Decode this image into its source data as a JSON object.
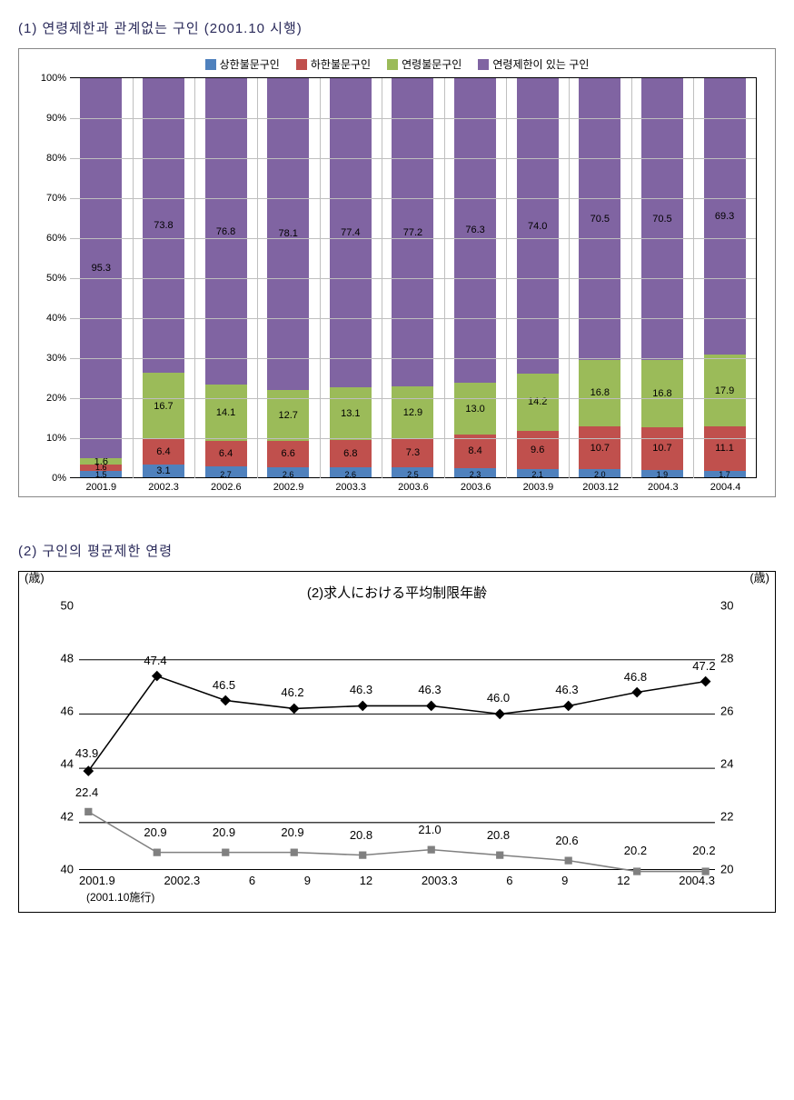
{
  "section1": {
    "title": "(1) 연령제한과 관계없는 구인 (2001.10 시행)",
    "chart": {
      "type": "stacked_bar",
      "ylim": [
        0,
        100
      ],
      "ytick_step": 10,
      "ytick_suffix": "%",
      "background_color": "#ffffff",
      "grid_color": "#bfbfbf",
      "categories": [
        "2001.9",
        "2002.3",
        "2002.6",
        "2002.9",
        "2003.3",
        "2003.6",
        "2003.6",
        "2003.9",
        "2003.12",
        "2004.3",
        "2004.4"
      ],
      "series": [
        {
          "name": "상한불문구인",
          "color": "#4f81bd"
        },
        {
          "name": "하한불문구인",
          "color": "#c0504d"
        },
        {
          "name": "연령불문구인",
          "color": "#9bbb59"
        },
        {
          "name": "연령제한이 있는 구인",
          "color": "#8064a2"
        }
      ],
      "values": [
        [
          1.5,
          1.6,
          1.6,
          95.3
        ],
        [
          3.1,
          6.4,
          16.7,
          73.8
        ],
        [
          2.7,
          6.4,
          14.1,
          76.8
        ],
        [
          2.6,
          6.6,
          12.7,
          78.1
        ],
        [
          2.6,
          6.8,
          13.1,
          77.4
        ],
        [
          2.5,
          7.3,
          12.9,
          77.2
        ],
        [
          2.3,
          8.4,
          13.0,
          76.3
        ],
        [
          2.1,
          9.6,
          14.2,
          74.0
        ],
        [
          2.0,
          10.7,
          16.8,
          70.5
        ],
        [
          1.9,
          10.7,
          16.8,
          70.5
        ],
        [
          1.7,
          11.1,
          17.9,
          69.3
        ]
      ]
    }
  },
  "section2": {
    "title": "(2) 구인의 평균제한 연령",
    "chart": {
      "type": "line",
      "title": "(2)求人における平均制限年齢",
      "left_axis": {
        "unit": "(歳)",
        "min": 40,
        "max": 50,
        "step": 2
      },
      "right_axis": {
        "unit": "(歳)",
        "min": 20,
        "max": 30,
        "step": 2
      },
      "grid_color": "#000000",
      "categories": [
        "2001.9",
        "2002.3",
        "6",
        "9",
        "12",
        "2003.3",
        "6",
        "9",
        "12",
        "2004.3"
      ],
      "subnote": "(2001.10施行)",
      "series_upper": {
        "color": "#000000",
        "marker": "diamond",
        "values": [
          43.9,
          47.4,
          46.5,
          46.2,
          46.3,
          46.3,
          46.0,
          46.3,
          46.8,
          47.2
        ]
      },
      "series_lower": {
        "color": "#808080",
        "marker": "square",
        "values": [
          22.4,
          20.9,
          20.9,
          20.9,
          20.8,
          21.0,
          20.8,
          20.6,
          20.2,
          20.2
        ]
      }
    }
  }
}
